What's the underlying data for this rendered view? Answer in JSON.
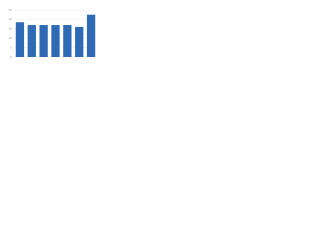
{
  "chart_data": {
    "type": "bar",
    "categories": [
      null,
      null,
      null,
      null,
      null,
      null,
      null
    ],
    "values": [
      18.5,
      17,
      17,
      17,
      17,
      16,
      22.5
    ],
    "color": "#2e6bb4",
    "ylim": [
      0,
      25
    ],
    "yticks": [
      0,
      5,
      10,
      15,
      20,
      25
    ],
    "grid": true
  }
}
